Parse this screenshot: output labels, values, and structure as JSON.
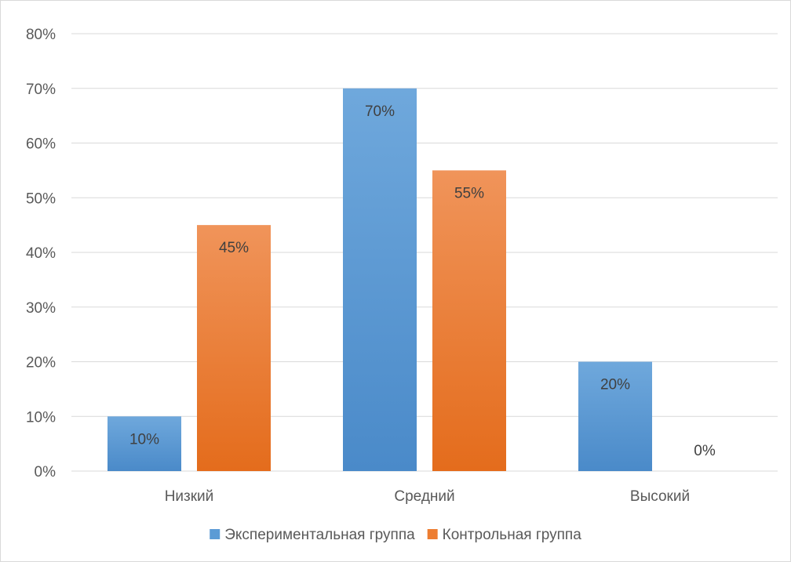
{
  "chart_data": {
    "type": "bar",
    "categories": [
      "Низкий",
      "Средний",
      "Высокий"
    ],
    "series": [
      {
        "name": "Экспериментальная группа",
        "values": [
          10,
          70,
          20
        ],
        "color": "#5b9bd5"
      },
      {
        "name": "Контрольная группа",
        "values": [
          45,
          55,
          0
        ],
        "color": "#ed7d31"
      }
    ],
    "data_labels": [
      [
        "10%",
        "70%",
        "20%"
      ],
      [
        "45%",
        "55%",
        "0%"
      ]
    ],
    "ylim": [
      0,
      80
    ],
    "yticks": [
      "0%",
      "10%",
      "20%",
      "30%",
      "40%",
      "50%",
      "60%",
      "70%",
      "80%"
    ],
    "grid": true,
    "legend": "bottom"
  }
}
